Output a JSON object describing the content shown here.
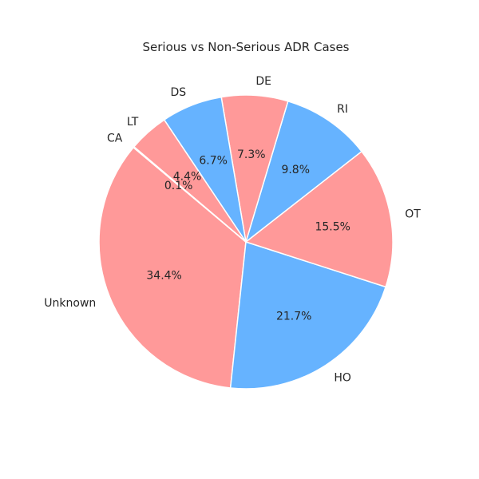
{
  "chart_data": {
    "type": "pie",
    "title": "Serious vs Non-Serious ADR Cases",
    "slices": [
      {
        "label": "Unknown",
        "value": 34.4,
        "pct_label": "34.4%",
        "color": "#ff9999"
      },
      {
        "label": "HO",
        "value": 21.7,
        "pct_label": "21.7%",
        "color": "#66b3ff"
      },
      {
        "label": "OT",
        "value": 15.5,
        "pct_label": "15.5%",
        "color": "#ff9999"
      },
      {
        "label": "RI",
        "value": 9.8,
        "pct_label": "9.8%",
        "color": "#66b3ff"
      },
      {
        "label": "DE",
        "value": 7.3,
        "pct_label": "7.3%",
        "color": "#ff9999"
      },
      {
        "label": "DS",
        "value": 6.7,
        "pct_label": "6.7%",
        "color": "#66b3ff"
      },
      {
        "label": "LT",
        "value": 4.4,
        "pct_label": "4.4%",
        "color": "#ff9999"
      },
      {
        "label": "CA",
        "value": 0.1,
        "pct_label": "0.1%",
        "color": "#66b3ff"
      }
    ],
    "start_angle_deg": 140,
    "direction": "counterclockwise",
    "wedge_edge_color": "#ffffff"
  }
}
